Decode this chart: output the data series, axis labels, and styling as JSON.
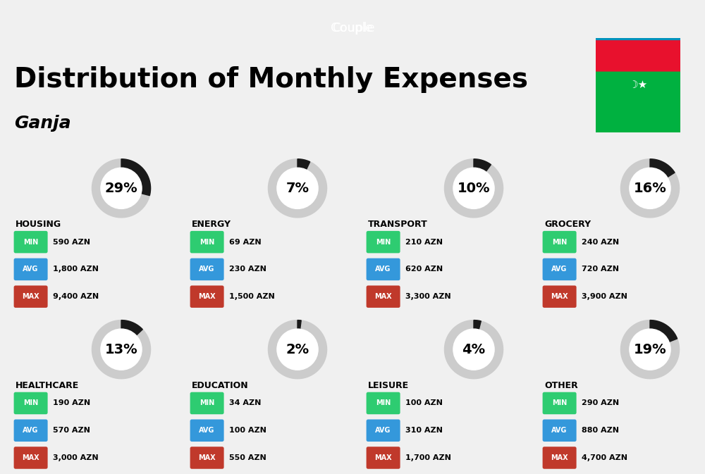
{
  "title": "Distribution of Monthly Expenses",
  "subtitle": "Couple",
  "city": "Ganja",
  "background_color": "#f0f0f0",
  "categories": [
    {
      "name": "HOUSING",
      "percent": 29,
      "min_val": "590 AZN",
      "avg_val": "1,800 AZN",
      "max_val": "9,400 AZN",
      "row": 0,
      "col": 0
    },
    {
      "name": "ENERGY",
      "percent": 7,
      "min_val": "69 AZN",
      "avg_val": "230 AZN",
      "max_val": "1,500 AZN",
      "row": 0,
      "col": 1
    },
    {
      "name": "TRANSPORT",
      "percent": 10,
      "min_val": "210 AZN",
      "avg_val": "620 AZN",
      "max_val": "3,300 AZN",
      "row": 0,
      "col": 2
    },
    {
      "name": "GROCERY",
      "percent": 16,
      "min_val": "240 AZN",
      "avg_val": "720 AZN",
      "max_val": "3,900 AZN",
      "row": 0,
      "col": 3
    },
    {
      "name": "HEALTHCARE",
      "percent": 13,
      "min_val": "190 AZN",
      "avg_val": "570 AZN",
      "max_val": "3,000 AZN",
      "row": 1,
      "col": 0
    },
    {
      "name": "EDUCATION",
      "percent": 2,
      "min_val": "34 AZN",
      "avg_val": "100 AZN",
      "max_val": "550 AZN",
      "row": 1,
      "col": 1
    },
    {
      "name": "LEISURE",
      "percent": 4,
      "min_val": "100 AZN",
      "avg_val": "310 AZN",
      "max_val": "1,700 AZN",
      "row": 1,
      "col": 2
    },
    {
      "name": "OTHER",
      "percent": 19,
      "min_val": "290 AZN",
      "avg_val": "880 AZN",
      "max_val": "4,700 AZN",
      "row": 1,
      "col": 3
    }
  ],
  "min_color": "#2ecc71",
  "avg_color": "#3498db",
  "max_color": "#c0392b",
  "label_color": "#ffffff",
  "donut_dark": "#1a1a1a",
  "donut_light": "#cccccc",
  "title_color": "#000000",
  "category_color": "#000000"
}
